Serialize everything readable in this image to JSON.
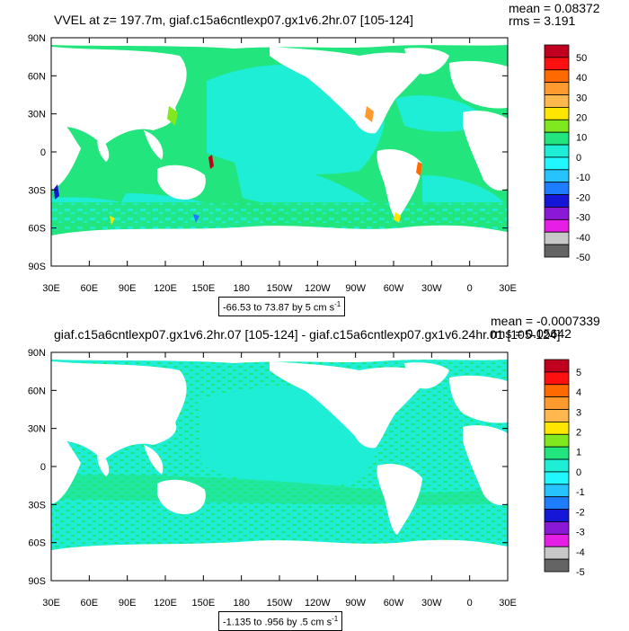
{
  "top": {
    "title": "VVEL at z= 197.7m, giaf.c15a6cntlexp07.gx1v6.2hr.07 [105-124]",
    "mean": "mean = 0.08372",
    "rms": "rms = 3.191",
    "range_label": "-66.53 to 73.87 by 5 cm s",
    "range_unit_sup": "-1",
    "colorbar_labels": [
      "50",
      "40",
      "30",
      "20",
      "10",
      "0",
      "-10",
      "-20",
      "-30",
      "-40",
      "-50"
    ]
  },
  "bottom": {
    "title": "giaf.c15a6cntlexp07.gx1v6.2hr.07 [105-124] - giaf.c15a6cntlexp07.gx1v6.24hr.01 [105-124]",
    "mean": "mean = -0.0007339",
    "rms": "rms = 0.05642",
    "range_label": "-1.135 to .956 by .5 cm s",
    "range_unit_sup": "-1",
    "colorbar_labels": [
      "5",
      "4",
      "3",
      "2",
      "1",
      "0",
      "-1",
      "-2",
      "-3",
      "-4",
      "-5"
    ]
  },
  "axes": {
    "lat_labels": [
      "90N",
      "60N",
      "30N",
      "0",
      "30S",
      "60S",
      "90S"
    ],
    "lon_labels": [
      "30E",
      "60E",
      "90E",
      "120E",
      "150E",
      "180",
      "150W",
      "120W",
      "90W",
      "60W",
      "30W",
      "0",
      "30E"
    ]
  },
  "colors": {
    "ocean_base": "#22e57d",
    "ocean_cyan": "#1eeed6",
    "land": "#ffffff",
    "palette": [
      "#c0001e",
      "#ff1010",
      "#ff6a00",
      "#ff9b2e",
      "#ffb84d",
      "#ffe600",
      "#7fe81f",
      "#22e57d",
      "#1eeed6",
      "#21f7ff",
      "#27c3ff",
      "#1e7cff",
      "#1616d8",
      "#8a18d6",
      "#e61ee6",
      "#c8c8c8",
      "#646464"
    ]
  }
}
